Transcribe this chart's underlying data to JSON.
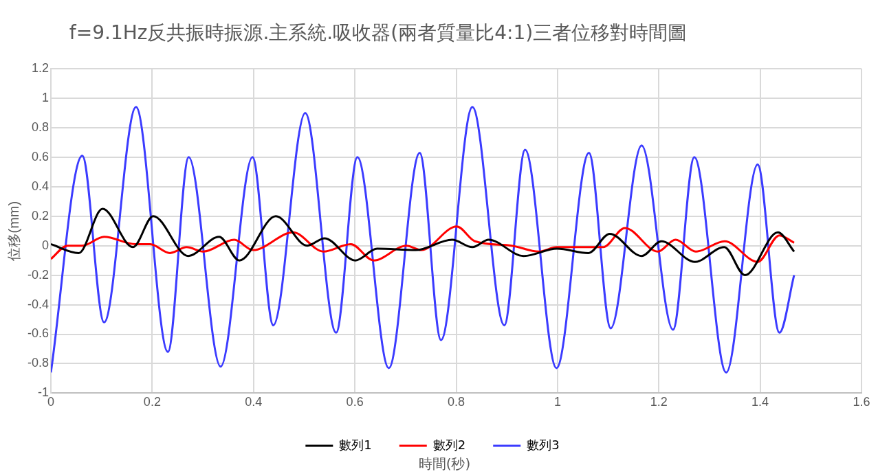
{
  "chart_data": {
    "type": "line",
    "title": "f=9.1Hz反共振時振源.主系統.吸收器(兩者質量比4:1)三者位移對時間圖",
    "xlabel": "時間(秒)",
    "ylabel": "位移(mm)",
    "xlim": [
      0,
      1.6
    ],
    "xticks": [
      0,
      0.2,
      0.4,
      0.6,
      0.8,
      1,
      1.2,
      1.4,
      1.6
    ],
    "ylim": [
      -1,
      1.2
    ],
    "yticks": [
      -1,
      -0.8,
      -0.6,
      -0.4,
      -0.2,
      0,
      0.2,
      0.4,
      0.6,
      0.8,
      1,
      1.2
    ],
    "grid": true,
    "legend": "bottom",
    "marker": "none",
    "line_style": "solid",
    "series": [
      {
        "name": "數列1",
        "color": "#000000",
        "x": [
          0,
          0.055,
          0.102,
          0.162,
          0.202,
          0.271,
          0.332,
          0.372,
          0.444,
          0.506,
          0.54,
          0.601,
          0.644,
          0.72,
          0.792,
          0.832,
          0.864,
          0.933,
          0.999,
          1.061,
          1.103,
          1.166,
          1.205,
          1.271,
          1.329,
          1.37,
          1.435,
          1.467
        ],
        "values": [
          0.01,
          -0.05,
          0.25,
          -0.01,
          0.2,
          -0.07,
          0.06,
          -0.1,
          0.2,
          0,
          0.05,
          -0.1,
          -0.02,
          -0.03,
          0.04,
          -0.01,
          0.04,
          -0.07,
          -0.02,
          -0.05,
          0.08,
          -0.07,
          0.03,
          -0.11,
          -0.01,
          -0.2,
          0.09,
          -0.04
        ]
      },
      {
        "name": "數列2",
        "color": "#ff0000",
        "x": [
          0,
          0.033,
          0.062,
          0.105,
          0.167,
          0.196,
          0.235,
          0.268,
          0.301,
          0.362,
          0.399,
          0.478,
          0.538,
          0.592,
          0.637,
          0.702,
          0.731,
          0.801,
          0.837,
          0.909,
          0.963,
          0.999,
          1.05,
          1.09,
          1.133,
          1.198,
          1.233,
          1.273,
          1.33,
          1.395,
          1.438,
          1.467
        ],
        "values": [
          -0.09,
          0,
          0,
          0.06,
          0.01,
          0.01,
          -0.05,
          -0.01,
          -0.04,
          0.04,
          -0.03,
          0.09,
          -0.04,
          0.01,
          -0.1,
          0,
          -0.03,
          0.13,
          0.03,
          0,
          -0.04,
          -0.01,
          -0.01,
          -0.01,
          0.12,
          -0.04,
          0.04,
          -0.04,
          0.03,
          -0.11,
          0.07,
          0.02
        ]
      },
      {
        "name": "數列3",
        "color": "#3b3bff",
        "x": [
          0,
          0.062,
          0.105,
          0.168,
          0.231,
          0.272,
          0.335,
          0.398,
          0.439,
          0.502,
          0.563,
          0.605,
          0.667,
          0.728,
          0.77,
          0.832,
          0.895,
          0.936,
          0.998,
          1.062,
          1.105,
          1.166,
          1.228,
          1.27,
          1.333,
          1.395,
          1.438,
          1.467
        ],
        "values": [
          -0.86,
          0.61,
          -0.52,
          0.94,
          -0.72,
          0.6,
          -0.82,
          0.6,
          -0.54,
          0.9,
          -0.59,
          0.6,
          -0.83,
          0.63,
          -0.64,
          0.94,
          -0.54,
          0.65,
          -0.83,
          0.63,
          -0.56,
          0.68,
          -0.57,
          0.6,
          -0.86,
          0.55,
          -0.59,
          -0.2
        ]
      }
    ]
  }
}
